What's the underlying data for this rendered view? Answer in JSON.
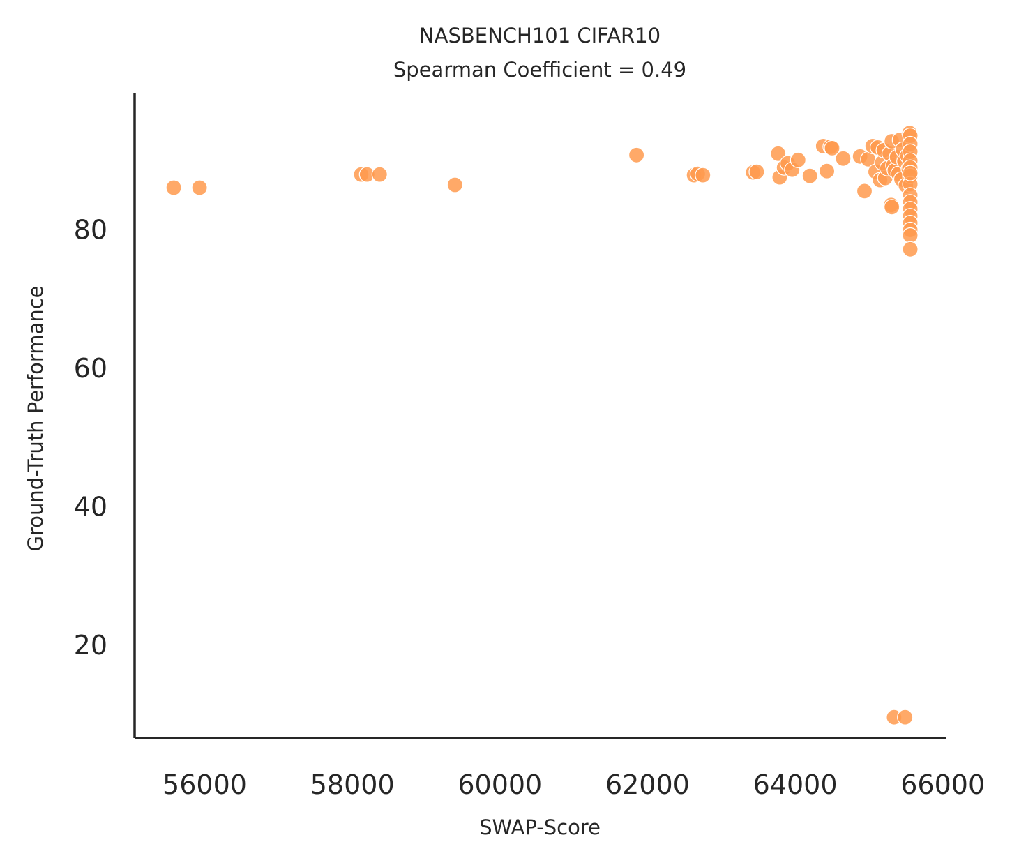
{
  "chart_data": {
    "type": "scatter",
    "title": "NASBENCH101 CIFAR10",
    "subtitle": "Spearman Coefficient = 0.49",
    "xlabel": "SWAP-Score",
    "ylabel": "Ground-Truth Performance",
    "xlim": [
      55050,
      66050
    ],
    "ylim": [
      6.6,
      99.7
    ],
    "xticks": [
      56000,
      58000,
      60000,
      62000,
      64000,
      66000
    ],
    "xtick_labels": [
      "56000",
      "58000",
      "60000",
      "62000",
      "64000",
      "66000"
    ],
    "yticks": [
      20,
      40,
      60,
      80
    ],
    "ytick_labels": [
      "20",
      "40",
      "60",
      "80"
    ],
    "grid": false,
    "legend": "none",
    "marker_color": "#ff9a4d",
    "marker_edge_color": "#ffffff",
    "axis_color": "#262626",
    "x": [
      55580,
      55930,
      58120,
      58200,
      58370,
      59390,
      61850,
      62630,
      62680,
      62750,
      63430,
      63480,
      63770,
      63790,
      63850,
      63900,
      63960,
      64040,
      64200,
      64380,
      64430,
      64480,
      64500,
      64650,
      64880,
      64940,
      64990,
      65050,
      65090,
      65120,
      65150,
      65180,
      65200,
      65220,
      65250,
      65280,
      65310,
      65330,
      65350,
      65380,
      65400,
      65420,
      65440,
      65460,
      65480,
      65500,
      65520,
      65540,
      65550,
      65560,
      65560,
      65560,
      65560,
      65560,
      65560,
      65560,
      65560,
      65560,
      65560,
      65560,
      65560,
      65560,
      65560,
      65560,
      65560,
      65300,
      65310,
      65340,
      65490
    ],
    "y": [
      86.1,
      86.1,
      88.0,
      88.0,
      88.0,
      86.5,
      90.8,
      87.9,
      88.1,
      87.9,
      88.3,
      88.4,
      91.0,
      87.6,
      89.0,
      89.6,
      88.7,
      90.1,
      87.8,
      92.1,
      88.5,
      92.0,
      91.8,
      90.3,
      90.6,
      85.6,
      90.2,
      92.1,
      88.4,
      91.9,
      87.2,
      89.7,
      91.5,
      87.5,
      88.9,
      91.0,
      92.8,
      89.3,
      88.6,
      90.5,
      88.1,
      93.0,
      87.3,
      91.6,
      89.9,
      86.4,
      90.7,
      88.8,
      94.0,
      93.6,
      92.4,
      91.3,
      90.0,
      89.0,
      87.8,
      86.6,
      85.0,
      84.0,
      83.0,
      82.0,
      81.0,
      80.0,
      79.2,
      77.2,
      88.2,
      83.6,
      83.3,
      9.6,
      9.6
    ]
  }
}
